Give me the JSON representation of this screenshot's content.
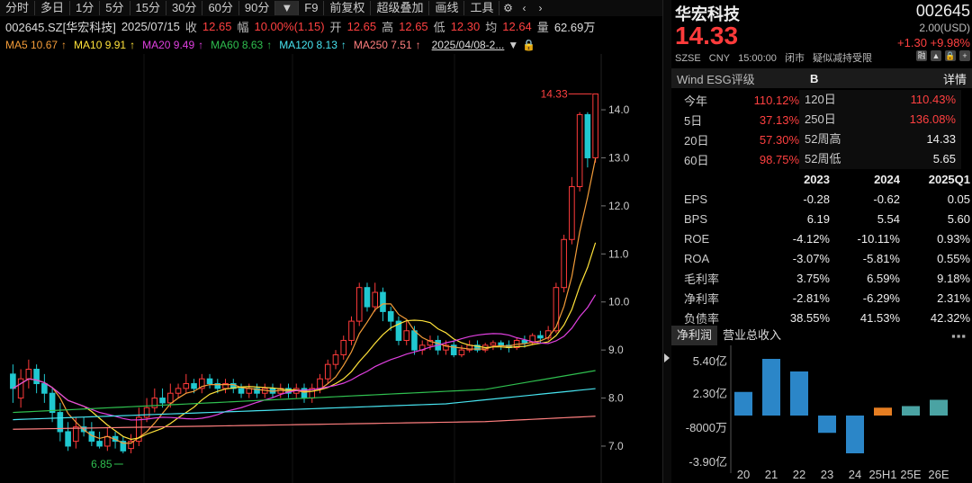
{
  "toolbar": {
    "items": [
      "分时",
      "多日",
      "1分",
      "5分",
      "15分",
      "30分",
      "60分",
      "90分"
    ],
    "f9": "F9",
    "items2": [
      "前复权",
      "超级叠加",
      "画线",
      "工具"
    ]
  },
  "info": {
    "code": "002645.SZ[华宏科技]",
    "date": "2025/07/15",
    "close_label": "收",
    "close": "12.65",
    "amp_label": "幅",
    "amp": "10.00%(1.15)",
    "open_label": "开",
    "open": "12.65",
    "high_label": "高",
    "high": "12.65",
    "low_label": "低",
    "low": "12.30",
    "avg_label": "均",
    "avg": "12.64",
    "vol_label": "量",
    "vol": "62.69万"
  },
  "ma": [
    {
      "label": "MA5",
      "value": "10.67",
      "color": "#f39c39"
    },
    {
      "label": "MA10",
      "value": "9.91",
      "color": "#ffe23a"
    },
    {
      "label": "MA20",
      "value": "9.49",
      "color": "#e040e0"
    },
    {
      "label": "MA60",
      "value": "8.63",
      "color": "#2fbf4f"
    },
    {
      "label": "MA120",
      "value": "8.13",
      "color": "#47e4f0"
    },
    {
      "label": "MA250",
      "value": "7.51",
      "color": "#ff7f7f"
    }
  ],
  "ma_range": "2025/04/08-2...",
  "chart_data": {
    "type": "candlestick",
    "ylim": [
      6.7,
      14.6
    ],
    "yticks": [
      "14.0",
      "13.0",
      "12.0",
      "11.0",
      "10.0",
      "9.0",
      "8.0",
      "7.0"
    ],
    "high_label": "14.33",
    "low_label": "6.85",
    "candles": [
      [
        8.5,
        8.2,
        8.7,
        7.9
      ],
      [
        8.0,
        8.4,
        8.6,
        7.8
      ],
      [
        8.4,
        8.6,
        8.8,
        8.2
      ],
      [
        8.6,
        8.3,
        8.7,
        8.1
      ],
      [
        8.3,
        8.1,
        8.5,
        7.9
      ],
      [
        8.1,
        7.7,
        8.2,
        7.5
      ],
      [
        7.7,
        7.3,
        7.9,
        7.1
      ],
      [
        7.3,
        7.0,
        7.5,
        6.9
      ],
      [
        7.1,
        7.4,
        7.6,
        6.95
      ],
      [
        7.4,
        7.3,
        7.6,
        7.2
      ],
      [
        7.3,
        7.1,
        7.5,
        7.0
      ],
      [
        7.1,
        7.0,
        7.3,
        6.95
      ],
      [
        7.0,
        7.2,
        7.4,
        6.9
      ],
      [
        7.2,
        7.1,
        7.3,
        6.95
      ],
      [
        7.1,
        6.9,
        7.2,
        6.85
      ],
      [
        6.95,
        7.1,
        7.25,
        6.85
      ],
      [
        7.1,
        7.6,
        7.8,
        7.0
      ],
      [
        7.6,
        7.8,
        8.0,
        7.5
      ],
      [
        7.8,
        8.0,
        8.2,
        7.7
      ],
      [
        8.0,
        7.9,
        8.2,
        7.8
      ],
      [
        7.9,
        8.1,
        8.3,
        7.8
      ],
      [
        8.1,
        8.2,
        8.3,
        8.0
      ],
      [
        8.2,
        8.3,
        8.5,
        8.1
      ],
      [
        8.3,
        8.2,
        8.4,
        8.1
      ],
      [
        8.2,
        8.4,
        8.5,
        8.1
      ],
      [
        8.4,
        8.3,
        8.5,
        8.2
      ],
      [
        8.3,
        8.2,
        8.4,
        8.1
      ],
      [
        8.2,
        8.3,
        8.4,
        8.1
      ],
      [
        8.3,
        8.2,
        8.4,
        8.1
      ],
      [
        8.2,
        8.1,
        8.3,
        8.0
      ],
      [
        8.1,
        8.2,
        8.3,
        8.0
      ],
      [
        8.2,
        8.1,
        8.3,
        8.0
      ],
      [
        8.1,
        8.2,
        8.3,
        8.0
      ],
      [
        8.2,
        8.1,
        8.3,
        8.0
      ],
      [
        8.1,
        8.2,
        8.3,
        8.0
      ],
      [
        8.2,
        8.1,
        8.3,
        8.0
      ],
      [
        8.1,
        8.2,
        8.3,
        8.0
      ],
      [
        8.2,
        8.0,
        8.3,
        7.9
      ],
      [
        8.0,
        8.2,
        8.3,
        7.9
      ],
      [
        8.2,
        8.4,
        8.5,
        8.1
      ],
      [
        8.4,
        8.7,
        8.8,
        8.3
      ],
      [
        8.7,
        8.9,
        9.0,
        8.6
      ],
      [
        8.9,
        9.2,
        9.3,
        8.8
      ],
      [
        9.2,
        9.6,
        9.7,
        9.1
      ],
      [
        9.6,
        10.3,
        10.4,
        9.5
      ],
      [
        10.3,
        9.9,
        10.4,
        9.8
      ],
      [
        9.9,
        10.2,
        10.4,
        9.8
      ],
      [
        10.2,
        9.8,
        10.3,
        9.6
      ],
      [
        9.8,
        9.6,
        9.9,
        9.4
      ],
      [
        9.6,
        9.2,
        9.7,
        9.1
      ],
      [
        9.2,
        9.4,
        9.6,
        9.1
      ],
      [
        9.4,
        9.0,
        9.5,
        8.9
      ],
      [
        9.0,
        9.1,
        9.2,
        8.9
      ],
      [
        9.1,
        9.2,
        9.3,
        9.0
      ],
      [
        9.2,
        9.0,
        9.3,
        8.9
      ],
      [
        9.0,
        9.1,
        9.2,
        8.9
      ],
      [
        9.1,
        8.9,
        9.2,
        8.85
      ],
      [
        8.9,
        9.0,
        9.1,
        8.85
      ],
      [
        9.0,
        9.1,
        9.2,
        8.95
      ],
      [
        9.1,
        9.0,
        9.2,
        8.95
      ],
      [
        9.0,
        9.1,
        9.15,
        8.95
      ],
      [
        9.1,
        9.15,
        9.2,
        9.0
      ],
      [
        9.15,
        9.1,
        9.2,
        9.0
      ],
      [
        9.1,
        9.05,
        9.2,
        8.95
      ],
      [
        9.05,
        9.2,
        9.25,
        9.0
      ],
      [
        9.2,
        9.15,
        9.3,
        9.05
      ],
      [
        9.15,
        9.3,
        9.35,
        9.1
      ],
      [
        9.3,
        9.25,
        9.4,
        9.15
      ],
      [
        9.25,
        9.4,
        9.5,
        9.2
      ],
      [
        9.4,
        10.3,
        10.4,
        9.35
      ],
      [
        10.3,
        11.3,
        11.4,
        10.2
      ],
      [
        11.3,
        12.4,
        12.6,
        11.2
      ],
      [
        12.4,
        13.9,
        13.95,
        12.3
      ],
      [
        13.9,
        13.0,
        13.95,
        12.8
      ],
      [
        13.0,
        14.33,
        14.33,
        12.9
      ]
    ]
  },
  "quote": {
    "name": "华宏科技",
    "code": "002645",
    "price": "14.33",
    "currency": "2.00(USD)",
    "change": "+1.30 +9.98%",
    "exchange": "SZSE",
    "ccy": "CNY",
    "time": "15:00:00",
    "status": "闭市",
    "tag": "疑似减持受限",
    "icons": [
      "融",
      "▲",
      "🔒",
      "+"
    ]
  },
  "esg": {
    "label": "Wind ESG评级",
    "value": "B",
    "detail": "详情"
  },
  "perf": [
    {
      "l": "今年",
      "v": "110.12%",
      "l2": "120日",
      "v2": "110.43%"
    },
    {
      "l": "5日",
      "v": "37.13%",
      "l2": "250日",
      "v2": "136.08%"
    },
    {
      "l": "20日",
      "v": "57.30%",
      "l2": "52周高",
      "v2": "14.33"
    },
    {
      "l": "60日",
      "v": "98.75%",
      "l2": "52周低",
      "v2": "5.65"
    }
  ],
  "fin": {
    "headers": [
      "2023",
      "2024",
      "2025Q1"
    ],
    "rows": [
      {
        "l": "EPS",
        "v": [
          "-0.28",
          "-0.62",
          "0.05"
        ]
      },
      {
        "l": "BPS",
        "v": [
          "6.19",
          "5.54",
          "5.60"
        ]
      },
      {
        "l": "ROE",
        "v": [
          "-4.12%",
          "-10.11%",
          "0.93%"
        ]
      },
      {
        "l": "ROA",
        "v": [
          "-3.07%",
          "-5.81%",
          "0.55%"
        ]
      },
      {
        "l": "毛利率",
        "v": [
          "3.75%",
          "6.59%",
          "9.18%"
        ]
      },
      {
        "l": "净利率",
        "v": [
          "-2.81%",
          "-6.29%",
          "2.31%"
        ]
      },
      {
        "l": "负债率",
        "v": [
          "38.55%",
          "41.53%",
          "42.32%"
        ]
      }
    ]
  },
  "tabs": {
    "net_profit": "净利润",
    "revenue": "营业总收入",
    "more": "▪▪▪"
  },
  "bar_chart": {
    "yticks": [
      "5.40亿",
      "2.30亿",
      "-8000万",
      "-3.90亿"
    ],
    "categories": [
      "20",
      "21",
      "22",
      "23",
      "24",
      "25H1",
      "25E",
      "26E"
    ],
    "values": [
      1.5,
      3.6,
      2.8,
      -1.1,
      -2.4,
      0.5,
      0.6,
      1.0
    ],
    "kinds": [
      "a",
      "a",
      "a",
      "a",
      "a",
      "e",
      "f",
      "f"
    ]
  }
}
